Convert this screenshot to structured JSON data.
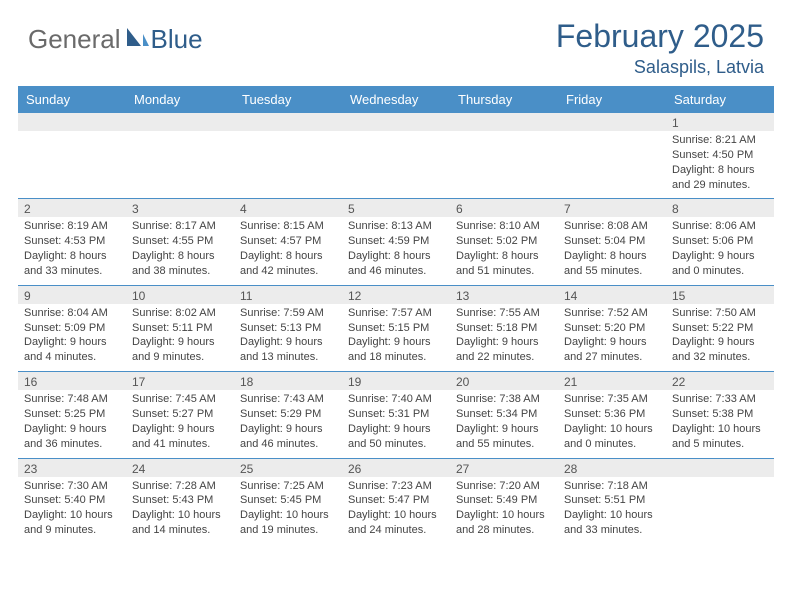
{
  "logo": {
    "part1": "General",
    "part2": "Blue"
  },
  "title": "February 2025",
  "location": "Salaspils, Latvia",
  "day_headers": [
    "Sunday",
    "Monday",
    "Tuesday",
    "Wednesday",
    "Thursday",
    "Friday",
    "Saturday"
  ],
  "colors": {
    "header_bar": "#4a8fc7",
    "title": "#2f5d8a",
    "strip": "#ececec"
  },
  "weeks": [
    [
      null,
      null,
      null,
      null,
      null,
      null,
      {
        "n": "1",
        "sunrise": "8:21 AM",
        "sunset": "4:50 PM",
        "d1": "Daylight: 8 hours",
        "d2": "and 29 minutes."
      }
    ],
    [
      {
        "n": "2",
        "sunrise": "8:19 AM",
        "sunset": "4:53 PM",
        "d1": "Daylight: 8 hours",
        "d2": "and 33 minutes."
      },
      {
        "n": "3",
        "sunrise": "8:17 AM",
        "sunset": "4:55 PM",
        "d1": "Daylight: 8 hours",
        "d2": "and 38 minutes."
      },
      {
        "n": "4",
        "sunrise": "8:15 AM",
        "sunset": "4:57 PM",
        "d1": "Daylight: 8 hours",
        "d2": "and 42 minutes."
      },
      {
        "n": "5",
        "sunrise": "8:13 AM",
        "sunset": "4:59 PM",
        "d1": "Daylight: 8 hours",
        "d2": "and 46 minutes."
      },
      {
        "n": "6",
        "sunrise": "8:10 AM",
        "sunset": "5:02 PM",
        "d1": "Daylight: 8 hours",
        "d2": "and 51 minutes."
      },
      {
        "n": "7",
        "sunrise": "8:08 AM",
        "sunset": "5:04 PM",
        "d1": "Daylight: 8 hours",
        "d2": "and 55 minutes."
      },
      {
        "n": "8",
        "sunrise": "8:06 AM",
        "sunset": "5:06 PM",
        "d1": "Daylight: 9 hours",
        "d2": "and 0 minutes."
      }
    ],
    [
      {
        "n": "9",
        "sunrise": "8:04 AM",
        "sunset": "5:09 PM",
        "d1": "Daylight: 9 hours",
        "d2": "and 4 minutes."
      },
      {
        "n": "10",
        "sunrise": "8:02 AM",
        "sunset": "5:11 PM",
        "d1": "Daylight: 9 hours",
        "d2": "and 9 minutes."
      },
      {
        "n": "11",
        "sunrise": "7:59 AM",
        "sunset": "5:13 PM",
        "d1": "Daylight: 9 hours",
        "d2": "and 13 minutes."
      },
      {
        "n": "12",
        "sunrise": "7:57 AM",
        "sunset": "5:15 PM",
        "d1": "Daylight: 9 hours",
        "d2": "and 18 minutes."
      },
      {
        "n": "13",
        "sunrise": "7:55 AM",
        "sunset": "5:18 PM",
        "d1": "Daylight: 9 hours",
        "d2": "and 22 minutes."
      },
      {
        "n": "14",
        "sunrise": "7:52 AM",
        "sunset": "5:20 PM",
        "d1": "Daylight: 9 hours",
        "d2": "and 27 minutes."
      },
      {
        "n": "15",
        "sunrise": "7:50 AM",
        "sunset": "5:22 PM",
        "d1": "Daylight: 9 hours",
        "d2": "and 32 minutes."
      }
    ],
    [
      {
        "n": "16",
        "sunrise": "7:48 AM",
        "sunset": "5:25 PM",
        "d1": "Daylight: 9 hours",
        "d2": "and 36 minutes."
      },
      {
        "n": "17",
        "sunrise": "7:45 AM",
        "sunset": "5:27 PM",
        "d1": "Daylight: 9 hours",
        "d2": "and 41 minutes."
      },
      {
        "n": "18",
        "sunrise": "7:43 AM",
        "sunset": "5:29 PM",
        "d1": "Daylight: 9 hours",
        "d2": "and 46 minutes."
      },
      {
        "n": "19",
        "sunrise": "7:40 AM",
        "sunset": "5:31 PM",
        "d1": "Daylight: 9 hours",
        "d2": "and 50 minutes."
      },
      {
        "n": "20",
        "sunrise": "7:38 AM",
        "sunset": "5:34 PM",
        "d1": "Daylight: 9 hours",
        "d2": "and 55 minutes."
      },
      {
        "n": "21",
        "sunrise": "7:35 AM",
        "sunset": "5:36 PM",
        "d1": "Daylight: 10 hours",
        "d2": "and 0 minutes."
      },
      {
        "n": "22",
        "sunrise": "7:33 AM",
        "sunset": "5:38 PM",
        "d1": "Daylight: 10 hours",
        "d2": "and 5 minutes."
      }
    ],
    [
      {
        "n": "23",
        "sunrise": "7:30 AM",
        "sunset": "5:40 PM",
        "d1": "Daylight: 10 hours",
        "d2": "and 9 minutes."
      },
      {
        "n": "24",
        "sunrise": "7:28 AM",
        "sunset": "5:43 PM",
        "d1": "Daylight: 10 hours",
        "d2": "and 14 minutes."
      },
      {
        "n": "25",
        "sunrise": "7:25 AM",
        "sunset": "5:45 PM",
        "d1": "Daylight: 10 hours",
        "d2": "and 19 minutes."
      },
      {
        "n": "26",
        "sunrise": "7:23 AM",
        "sunset": "5:47 PM",
        "d1": "Daylight: 10 hours",
        "d2": "and 24 minutes."
      },
      {
        "n": "27",
        "sunrise": "7:20 AM",
        "sunset": "5:49 PM",
        "d1": "Daylight: 10 hours",
        "d2": "and 28 minutes."
      },
      {
        "n": "28",
        "sunrise": "7:18 AM",
        "sunset": "5:51 PM",
        "d1": "Daylight: 10 hours",
        "d2": "and 33 minutes."
      },
      null
    ]
  ]
}
